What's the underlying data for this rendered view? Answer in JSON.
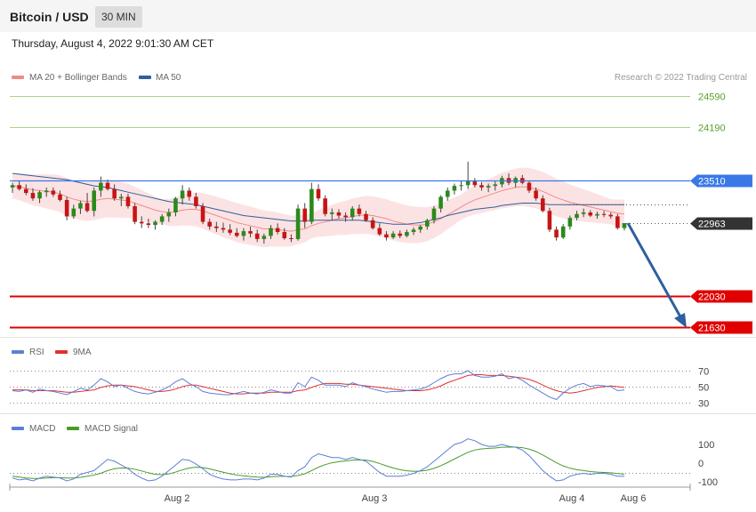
{
  "header": {
    "title": "Bitcoin / USD",
    "timeframe": "30 MIN",
    "timestamp": "Thursday, August 4, 2022 9:01:30 AM CET"
  },
  "main_panel": {
    "legend": [
      {
        "label": "MA 20 + Bollinger Bands",
        "color": "#f08a8a"
      },
      {
        "label": "MA 50",
        "color": "#2f5f9e"
      }
    ],
    "copyright": "Research © 2022 Trading Central",
    "levels": [
      {
        "value": 24590,
        "label": "24590",
        "kind": "target",
        "color": "#5aa02c"
      },
      {
        "value": 24190,
        "label": "24190",
        "kind": "target",
        "color": "#5aa02c"
      },
      {
        "value": 23510,
        "label": "23510",
        "kind": "pivot",
        "color": "#3a78e8"
      },
      {
        "value": 22963,
        "label": "22963",
        "kind": "last",
        "color": "#333333"
      },
      {
        "value": 22030,
        "label": "22030",
        "kind": "support",
        "color": "#e00000"
      },
      {
        "value": 21630,
        "label": "21630",
        "kind": "support",
        "color": "#e00000"
      }
    ]
  },
  "rsi_panel": {
    "legend": [
      {
        "label": "RSI",
        "color": "#5b7fd6"
      },
      {
        "label": "9MA",
        "color": "#e03030"
      }
    ],
    "ticks": [
      "70",
      "50",
      "30"
    ]
  },
  "macd_panel": {
    "legend": [
      {
        "label": "MACD",
        "color": "#5b7fd6"
      },
      {
        "label": "MACD Signal",
        "color": "#4a9a2a"
      }
    ],
    "ticks": [
      "100",
      "0",
      "-100"
    ]
  },
  "x_axis": {
    "labels": [
      "Aug 2",
      "Aug 3",
      "Aug 4",
      "Aug 6"
    ]
  },
  "chart_data": {
    "type": "candlestick",
    "y_range": [
      21500,
      24800
    ],
    "x_labels": [
      "Aug 2",
      "Aug 3",
      "Aug 4",
      "Aug 6"
    ],
    "candles": [
      [
        23420,
        23480,
        23350,
        23450
      ],
      [
        23450,
        23500,
        23380,
        23400
      ],
      [
        23400,
        23460,
        23320,
        23350
      ],
      [
        23350,
        23410,
        23250,
        23280
      ],
      [
        23280,
        23380,
        23220,
        23360
      ],
      [
        23360,
        23420,
        23300,
        23380
      ],
      [
        23380,
        23420,
        23300,
        23330
      ],
      [
        23330,
        23380,
        23240,
        23260
      ],
      [
        23260,
        23300,
        23000,
        23050
      ],
      [
        23050,
        23200,
        23020,
        23150
      ],
      [
        23150,
        23250,
        23080,
        23220
      ],
      [
        23220,
        23350,
        23100,
        23120
      ],
      [
        23120,
        23420,
        23050,
        23380
      ],
      [
        23380,
        23560,
        23300,
        23480
      ],
      [
        23480,
        23520,
        23380,
        23400
      ],
      [
        23400,
        23460,
        23250,
        23280
      ],
      [
        23280,
        23340,
        23180,
        23300
      ],
      [
        23300,
        23340,
        23150,
        23180
      ],
      [
        23180,
        23220,
        22950,
        22980
      ],
      [
        22980,
        23050,
        22900,
        22960
      ],
      [
        22960,
        23020,
        22900,
        22940
      ],
      [
        22940,
        23000,
        22880,
        22980
      ],
      [
        22980,
        23080,
        22940,
        23050
      ],
      [
        23050,
        23150,
        22980,
        23100
      ],
      [
        23100,
        23300,
        23050,
        23280
      ],
      [
        23280,
        23450,
        23200,
        23380
      ],
      [
        23380,
        23420,
        23250,
        23300
      ],
      [
        23300,
        23350,
        23150,
        23180
      ],
      [
        23180,
        23220,
        22950,
        22980
      ],
      [
        22980,
        23020,
        22880,
        22920
      ],
      [
        22920,
        22980,
        22850,
        22900
      ],
      [
        22900,
        22970,
        22840,
        22880
      ],
      [
        22880,
        22950,
        22810,
        22840
      ],
      [
        22840,
        22900,
        22780,
        22800
      ],
      [
        22800,
        22900,
        22740,
        22860
      ],
      [
        22860,
        22920,
        22780,
        22830
      ],
      [
        22830,
        22880,
        22720,
        22760
      ],
      [
        22760,
        22830,
        22700,
        22800
      ],
      [
        22800,
        22940,
        22760,
        22900
      ],
      [
        22900,
        22960,
        22820,
        22850
      ],
      [
        22850,
        22900,
        22750,
        22770
      ],
      [
        22770,
        22820,
        22720,
        22760
      ],
      [
        22760,
        23200,
        22740,
        23150
      ],
      [
        23150,
        23220,
        22900,
        22980
      ],
      [
        22980,
        23480,
        22950,
        23400
      ],
      [
        23400,
        23460,
        23250,
        23280
      ],
      [
        23280,
        23320,
        23050,
        23080
      ],
      [
        23080,
        23150,
        23000,
        23100
      ],
      [
        23100,
        23140,
        23020,
        23060
      ],
      [
        23060,
        23100,
        22980,
        23040
      ],
      [
        23040,
        23180,
        23000,
        23150
      ],
      [
        23150,
        23200,
        23050,
        23080
      ],
      [
        23080,
        23120,
        22980,
        23000
      ],
      [
        23000,
        23040,
        22880,
        22900
      ],
      [
        22900,
        22960,
        22800,
        22820
      ],
      [
        22820,
        22860,
        22740,
        22780
      ],
      [
        22780,
        22860,
        22760,
        22830
      ],
      [
        22830,
        22870,
        22770,
        22800
      ],
      [
        22800,
        22880,
        22780,
        22850
      ],
      [
        22850,
        22910,
        22810,
        22880
      ],
      [
        22880,
        22940,
        22840,
        22920
      ],
      [
        22920,
        23020,
        22880,
        23000
      ],
      [
        23000,
        23180,
        22960,
        23150
      ],
      [
        23150,
        23320,
        23100,
        23300
      ],
      [
        23300,
        23420,
        23250,
        23380
      ],
      [
        23380,
        23470,
        23330,
        23440
      ],
      [
        23440,
        23500,
        23380,
        23450
      ],
      [
        23450,
        23750,
        23400,
        23500
      ],
      [
        23500,
        23540,
        23420,
        23450
      ],
      [
        23450,
        23490,
        23380,
        23420
      ],
      [
        23420,
        23470,
        23360,
        23440
      ],
      [
        23440,
        23500,
        23380,
        23460
      ],
      [
        23460,
        23570,
        23420,
        23540
      ],
      [
        23540,
        23600,
        23450,
        23480
      ],
      [
        23480,
        23560,
        23420,
        23540
      ],
      [
        23540,
        23580,
        23460,
        23480
      ],
      [
        23480,
        23510,
        23350,
        23380
      ],
      [
        23380,
        23420,
        23250,
        23280
      ],
      [
        23280,
        23320,
        23100,
        23120
      ],
      [
        23120,
        23160,
        22850,
        22880
      ],
      [
        22880,
        22920,
        22740,
        22780
      ],
      [
        22780,
        22950,
        22760,
        22920
      ],
      [
        22920,
        23060,
        22880,
        23030
      ],
      [
        23030,
        23120,
        23000,
        23080
      ],
      [
        23080,
        23150,
        23040,
        23100
      ],
      [
        23100,
        23130,
        23040,
        23060
      ],
      [
        23060,
        23110,
        23020,
        23080
      ],
      [
        23080,
        23120,
        23040,
        23070
      ],
      [
        23070,
        23100,
        23020,
        23050
      ],
      [
        23050,
        23080,
        22880,
        22900
      ],
      [
        22900,
        22960,
        22870,
        22963
      ]
    ],
    "rsi": [
      45,
      44,
      46,
      43,
      47,
      45,
      44,
      42,
      40,
      44,
      48,
      46,
      52,
      60,
      56,
      50,
      52,
      48,
      44,
      42,
      41,
      43,
      46,
      50,
      56,
      60,
      54,
      50,
      44,
      42,
      41,
      40,
      40,
      42,
      44,
      42,
      41,
      43,
      46,
      44,
      42,
      42,
      55,
      50,
      62,
      58,
      52,
      52,
      52,
      50,
      55,
      52,
      50,
      47,
      45,
      43,
      44,
      44,
      45,
      46,
      47,
      50,
      55,
      60,
      64,
      66,
      66,
      70,
      64,
      62,
      62,
      63,
      66,
      60,
      62,
      58,
      52,
      47,
      42,
      37,
      34,
      42,
      48,
      52,
      54,
      50,
      52,
      51,
      50,
      45,
      46
    ],
    "rsi_ma": [
      46,
      46,
      46,
      45,
      45,
      45,
      45,
      44,
      43,
      43,
      44,
      45,
      46,
      49,
      51,
      52,
      52,
      51,
      50,
      48,
      46,
      44,
      44,
      45,
      47,
      50,
      52,
      52,
      50,
      48,
      46,
      44,
      42,
      41,
      41,
      42,
      42,
      42,
      43,
      43,
      43,
      43,
      45,
      46,
      49,
      52,
      54,
      54,
      54,
      53,
      53,
      52,
      51,
      50,
      49,
      48,
      47,
      46,
      45,
      45,
      45,
      46,
      48,
      51,
      55,
      58,
      61,
      64,
      65,
      65,
      64,
      64,
      64,
      63,
      62,
      61,
      59,
      56,
      52,
      48,
      45,
      43,
      42,
      43,
      45,
      47,
      49,
      50,
      51,
      50,
      49
    ],
    "macd": [
      -80,
      -90,
      -85,
      -95,
      -80,
      -70,
      -75,
      -80,
      -95,
      -85,
      -60,
      -50,
      -40,
      -10,
      20,
      10,
      -10,
      -30,
      -60,
      -80,
      -95,
      -90,
      -70,
      -40,
      -10,
      20,
      15,
      -5,
      -30,
      -60,
      -75,
      -85,
      -90,
      -90,
      -85,
      -85,
      -90,
      -80,
      -60,
      -60,
      -70,
      -75,
      -40,
      -20,
      30,
      50,
      40,
      30,
      30,
      20,
      30,
      20,
      10,
      -20,
      -50,
      -70,
      -70,
      -70,
      -65,
      -55,
      -40,
      -20,
      10,
      40,
      70,
      100,
      110,
      130,
      120,
      100,
      90,
      90,
      100,
      90,
      85,
      70,
      40,
      0,
      -40,
      -70,
      -95,
      -90,
      -70,
      -60,
      -55,
      -60,
      -55,
      -55,
      -60,
      -70,
      -70
    ],
    "macd_signal": [
      -70,
      -75,
      -80,
      -82,
      -82,
      -80,
      -78,
      -78,
      -80,
      -80,
      -76,
      -70,
      -64,
      -54,
      -40,
      -30,
      -26,
      -27,
      -33,
      -42,
      -52,
      -60,
      -62,
      -58,
      -48,
      -36,
      -26,
      -22,
      -24,
      -31,
      -40,
      -49,
      -57,
      -64,
      -68,
      -72,
      -75,
      -76,
      -73,
      -71,
      -71,
      -72,
      -66,
      -57,
      -40,
      -22,
      -8,
      2,
      8,
      12,
      16,
      17,
      16,
      9,
      -2,
      -15,
      -26,
      -35,
      -41,
      -44,
      -43,
      -38,
      -28,
      -14,
      3,
      22,
      40,
      58,
      70,
      76,
      79,
      81,
      85,
      86,
      86,
      83,
      75,
      62,
      44,
      23,
      2,
      -15,
      -27,
      -35,
      -40,
      -45,
      -48,
      -50,
      -52,
      -56,
      -59
    ],
    "ma20": [
      23440,
      23430,
      23410,
      23390,
      23380,
      23370,
      23360,
      23340,
      23300,
      23270,
      23250,
      23240,
      23250,
      23270,
      23280,
      23270,
      23260,
      23250,
      23220,
      23190,
      23160,
      23130,
      23110,
      23100,
      23110,
      23130,
      23140,
      23140,
      23120,
      23090,
      23060,
      23030,
      23000,
      22970,
      22950,
      22930,
      22910,
      22890,
      22890,
      22880,
      22870,
      22860,
      22880,
      22890,
      22930,
      22960,
      22980,
      23000,
      23020,
      23030,
      23050,
      23060,
      23070,
      23060,
      23040,
      23020,
      22990,
      22970,
      22950,
      22940,
      22940,
      22950,
      22980,
      23020,
      23070,
      23120,
      23170,
      23220,
      23260,
      23290,
      23320,
      23350,
      23380,
      23400,
      23420,
      23430,
      23420,
      23400,
      23370,
      23330,
      23290,
      23260,
      23230,
      23210,
      23190,
      23170,
      23150,
      23130,
      23110,
      23090,
      23080
    ],
    "ma50": [
      23600,
      23590,
      23580,
      23570,
      23560,
      23550,
      23540,
      23530,
      23520,
      23500,
      23480,
      23460,
      23440,
      23430,
      23420,
      23400,
      23380,
      23360,
      23340,
      23320,
      23300,
      23280,
      23260,
      23240,
      23230,
      23220,
      23210,
      23200,
      23180,
      23160,
      23140,
      23120,
      23100,
      23080,
      23060,
      23050,
      23040,
      23030,
      23020,
      23010,
      23000,
      22990,
      22990,
      22990,
      23000,
      23000,
      23000,
      23000,
      23000,
      23000,
      23000,
      23000,
      22990,
      22980,
      22970,
      22960,
      22950,
      22950,
      22950,
      22960,
      22970,
      22990,
      23010,
      23030,
      23060,
      23080,
      23100,
      23120,
      23140,
      23150,
      23160,
      23170,
      23190,
      23200,
      23210,
      23220,
      23220,
      23220,
      23210,
      23200,
      23200,
      23200,
      23200,
      23200,
      23200,
      23200,
      23200,
      23200,
      23200,
      23200,
      23200
    ]
  }
}
